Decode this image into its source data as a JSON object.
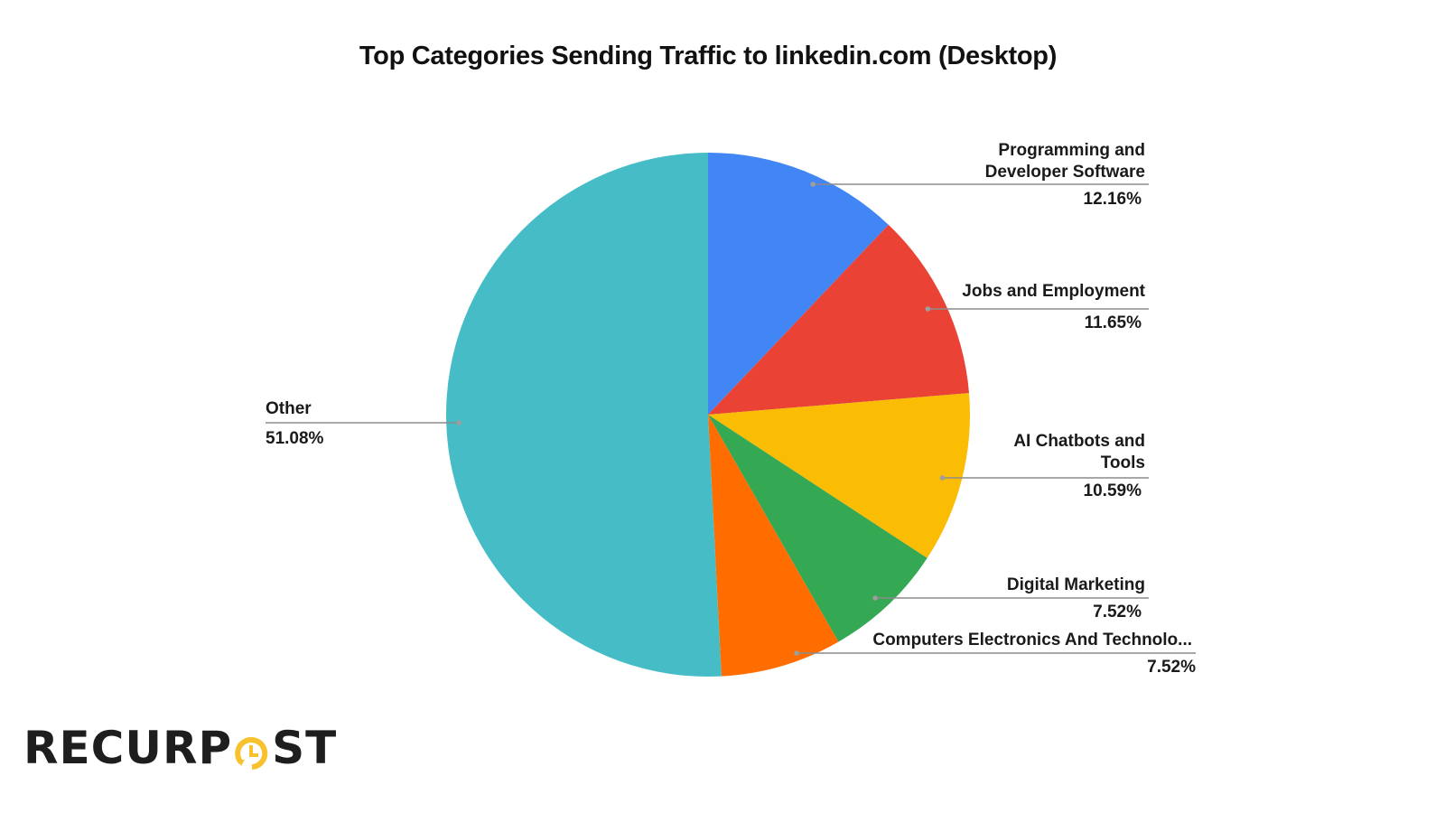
{
  "chart_data": {
    "type": "pie",
    "title": "Top Categories Sending Traffic to linkedin.com (Desktop)",
    "start_angle_deg": 0,
    "direction": "clockwise",
    "slices": [
      {
        "label": "Programming and Developer Software",
        "label_lines": [
          "Programming and",
          "Developer Software"
        ],
        "value": 12.16,
        "display": "12.16%",
        "color": "#4285f4"
      },
      {
        "label": "Jobs and Employment",
        "label_lines": [
          "Jobs and Employment"
        ],
        "value": 11.65,
        "display": "11.65%",
        "color": "#ea4335"
      },
      {
        "label": "AI Chatbots and Tools",
        "label_lines": [
          "AI Chatbots and",
          "Tools"
        ],
        "value": 10.59,
        "display": "10.59%",
        "color": "#fbbc04"
      },
      {
        "label": "Digital Marketing",
        "label_lines": [
          "Digital Marketing"
        ],
        "value": 7.52,
        "display": "7.52%",
        "color": "#34a853"
      },
      {
        "label": "Computers Electronics And Technolo...",
        "label_lines": [
          "Computers Electronics And Technolo..."
        ],
        "value": 7.52,
        "display": "7.52%",
        "color": "#ff6d01"
      },
      {
        "label": "Other",
        "label_lines": [
          "Other"
        ],
        "value": 51.08,
        "display": "51.08%",
        "color": "#46bdc6"
      }
    ],
    "legend": "none (callout labels)",
    "units": "percent of desktop traffic"
  },
  "logo": {
    "text_before": "RECURP",
    "text_after": "ST",
    "accent_color": "#f8c12e",
    "text_color": "#1e1e1e"
  }
}
